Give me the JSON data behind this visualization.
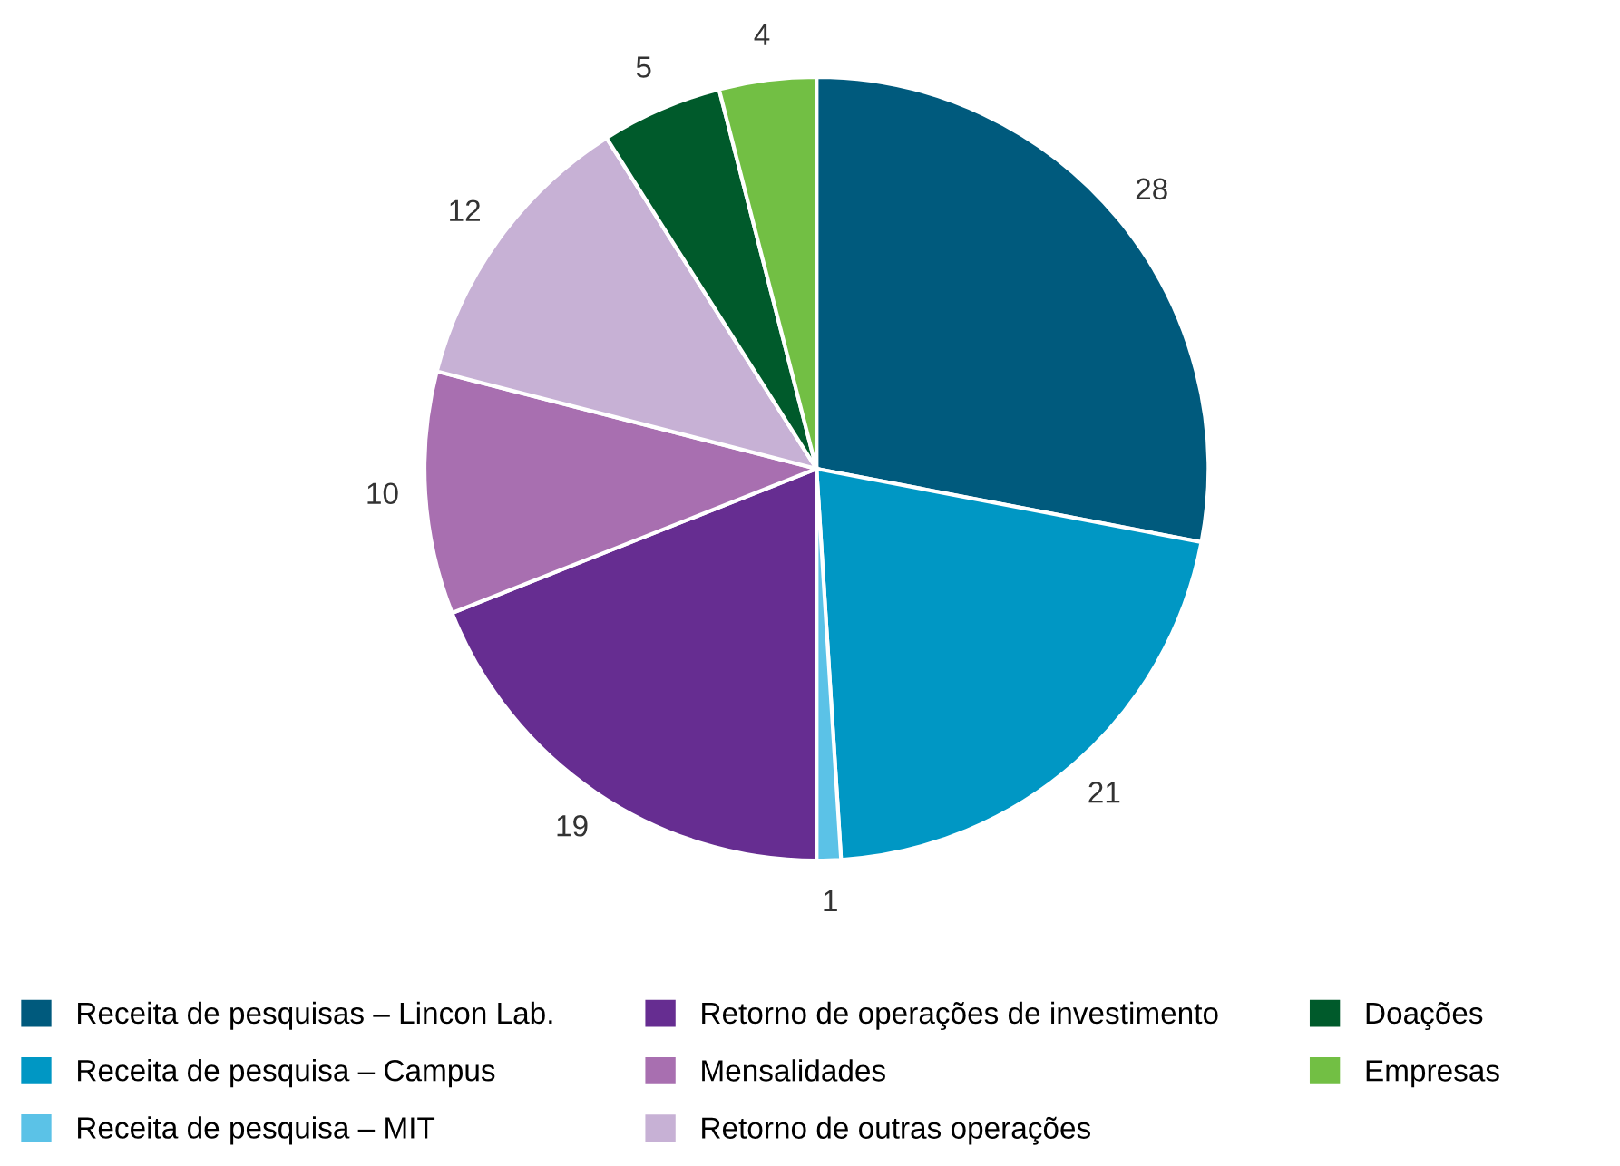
{
  "chart_data": {
    "type": "pie",
    "categories": [
      "Receita de pesquisas – Lincon Lab.",
      "Receita de pesquisa – Campus",
      "Receita de pesquisa – MIT",
      "Retorno de operações de investimento",
      "Mensalidades",
      "Retorno de outras operações",
      "Doações",
      "Empresas"
    ],
    "values": [
      28,
      21,
      1,
      19,
      10,
      12,
      5,
      4
    ],
    "colors": [
      "#005a7d",
      "#0097c4",
      "#5bc2e7",
      "#662d91",
      "#a86fb0",
      "#c7b1d5",
      "#005a2b",
      "#72bf44"
    ],
    "data_labels": true,
    "legend": "bottom"
  }
}
